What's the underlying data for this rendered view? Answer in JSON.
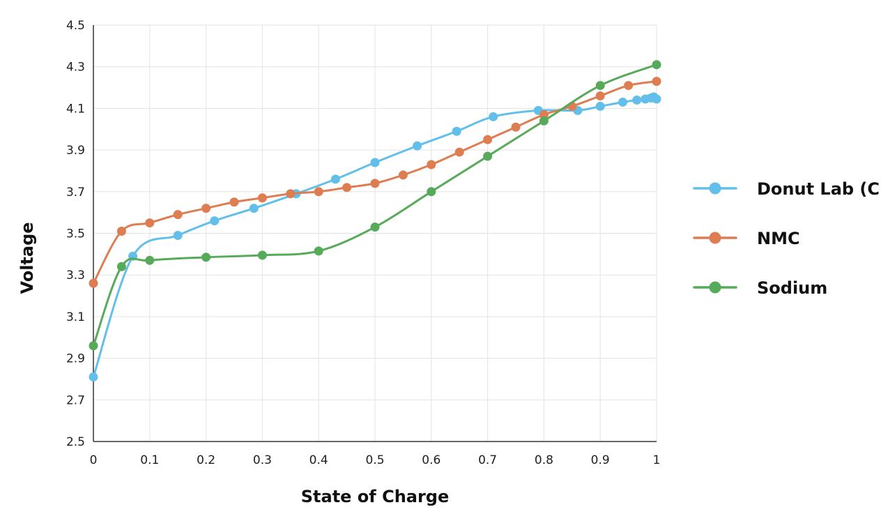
{
  "chart_data": {
    "type": "line",
    "title": "",
    "xlabel": "State of Charge",
    "ylabel": "Voltage",
    "xlim": [
      0,
      1
    ],
    "ylim": [
      2.5,
      4.5
    ],
    "x_ticks": [
      "0",
      "0.1",
      "0.2",
      "0.3",
      "0.4",
      "0.5",
      "0.6",
      "0.7",
      "0.8",
      "0.9",
      "1"
    ],
    "y_ticks": [
      "2.5",
      "2.7",
      "2.9",
      "3.1",
      "3.3",
      "3.5",
      "3.7",
      "3.9",
      "4.1",
      "4.3",
      "4.5"
    ],
    "grid": true,
    "legend_position": "right",
    "series": [
      {
        "name": "Donut Lab (C)",
        "color": "#62bfe9",
        "points": [
          [
            0,
            2.81
          ],
          [
            0.07,
            3.39
          ],
          [
            0.15,
            3.49
          ],
          [
            0.215,
            3.56
          ],
          [
            0.285,
            3.62
          ],
          [
            0.36,
            3.69
          ],
          [
            0.43,
            3.76
          ],
          [
            0.5,
            3.84
          ],
          [
            0.575,
            3.92
          ],
          [
            0.645,
            3.99
          ],
          [
            0.71,
            4.06
          ],
          [
            0.79,
            4.09
          ],
          [
            0.86,
            4.09
          ],
          [
            0.9,
            4.11
          ],
          [
            0.94,
            4.13
          ],
          [
            0.965,
            4.14
          ],
          [
            0.98,
            4.145
          ],
          [
            0.99,
            4.15
          ],
          [
            0.995,
            4.155
          ],
          [
            1.0,
            4.145
          ]
        ]
      },
      {
        "name": "NMC",
        "color": "#df7d52",
        "points": [
          [
            0,
            3.26
          ],
          [
            0.05,
            3.51
          ],
          [
            0.1,
            3.55
          ],
          [
            0.15,
            3.59
          ],
          [
            0.2,
            3.62
          ],
          [
            0.25,
            3.65
          ],
          [
            0.3,
            3.67
          ],
          [
            0.35,
            3.69
          ],
          [
            0.4,
            3.7
          ],
          [
            0.45,
            3.72
          ],
          [
            0.5,
            3.74
          ],
          [
            0.55,
            3.78
          ],
          [
            0.6,
            3.83
          ],
          [
            0.65,
            3.89
          ],
          [
            0.7,
            3.95
          ],
          [
            0.75,
            4.01
          ],
          [
            0.8,
            4.07
          ],
          [
            0.85,
            4.11
          ],
          [
            0.9,
            4.16
          ],
          [
            0.95,
            4.21
          ],
          [
            1.0,
            4.23
          ]
        ]
      },
      {
        "name": "Sodium",
        "color": "#57aa5a",
        "points": [
          [
            0,
            2.96
          ],
          [
            0.05,
            3.34
          ],
          [
            0.1,
            3.37
          ],
          [
            0.2,
            3.385
          ],
          [
            0.3,
            3.395
          ],
          [
            0.4,
            3.415
          ],
          [
            0.5,
            3.53
          ],
          [
            0.6,
            3.7
          ],
          [
            0.7,
            3.87
          ],
          [
            0.8,
            4.04
          ],
          [
            0.9,
            4.21
          ],
          [
            1.0,
            4.31
          ]
        ]
      }
    ]
  }
}
